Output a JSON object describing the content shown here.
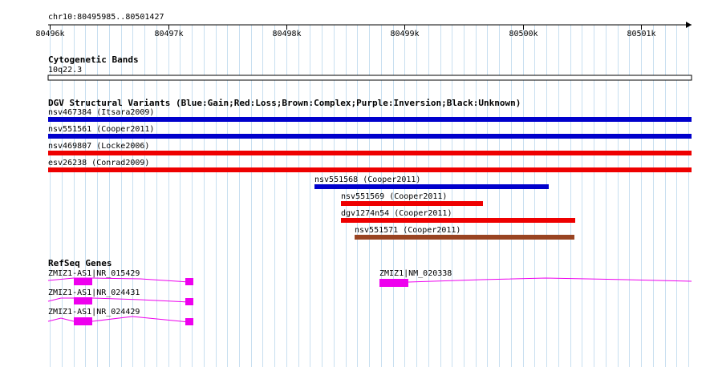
{
  "locus": "chr10:80495985..80501427",
  "ruler": {
    "ticks": [
      "80496k",
      "80497k",
      "80498k",
      "80499k",
      "80500k",
      "80501k"
    ]
  },
  "tracks": {
    "cytoband": {
      "title": "Cytogenetic Bands",
      "band": "10q22.3"
    },
    "dgv": {
      "title": "DGV Structural Variants (Blue:Gain;Red:Loss;Brown:Complex;Purple:Inversion;Black:Unknown)",
      "colors": {
        "gain": "#0000cc",
        "loss": "#ee0000",
        "complex": "#994422"
      },
      "features": [
        {
          "label": "nsv467384 (Itsara2009)",
          "type": "gain",
          "start_kb": 80495.985,
          "end_kb": 80501.427
        },
        {
          "label": "nsv551561 (Cooper2011)",
          "type": "gain",
          "start_kb": 80495.985,
          "end_kb": 80501.427
        },
        {
          "label": "nsv469807 (Locke2006)",
          "type": "loss",
          "start_kb": 80495.985,
          "end_kb": 80501.427
        },
        {
          "label": "esv26238 (Conrad2009)",
          "type": "loss",
          "start_kb": 80495.985,
          "end_kb": 80501.427
        },
        {
          "label": "nsv551568 (Cooper2011)",
          "type": "gain",
          "start_kb": 80498.24,
          "end_kb": 80500.22
        },
        {
          "label": "nsv551569 (Cooper2011)",
          "type": "loss",
          "start_kb": 80498.46,
          "end_kb": 80499.66
        },
        {
          "label": "dgv1274n54 (Cooper2011)",
          "type": "loss",
          "start_kb": 80498.46,
          "end_kb": 80500.44
        },
        {
          "label": "nsv551571 (Cooper2011)",
          "type": "complex",
          "start_kb": 80498.58,
          "end_kb": 80500.44
        }
      ]
    },
    "refseq": {
      "title": "RefSeq Genes",
      "color": "#ee00ee",
      "genes": [
        {
          "label": "ZMIZ1-AS1|NR_015429"
        },
        {
          "label": "ZMIZ1-AS1|NR_024431"
        },
        {
          "label": "ZMIZ1-AS1|NR_024429"
        },
        {
          "label": "ZMIZ1|NM_020338"
        }
      ]
    }
  }
}
